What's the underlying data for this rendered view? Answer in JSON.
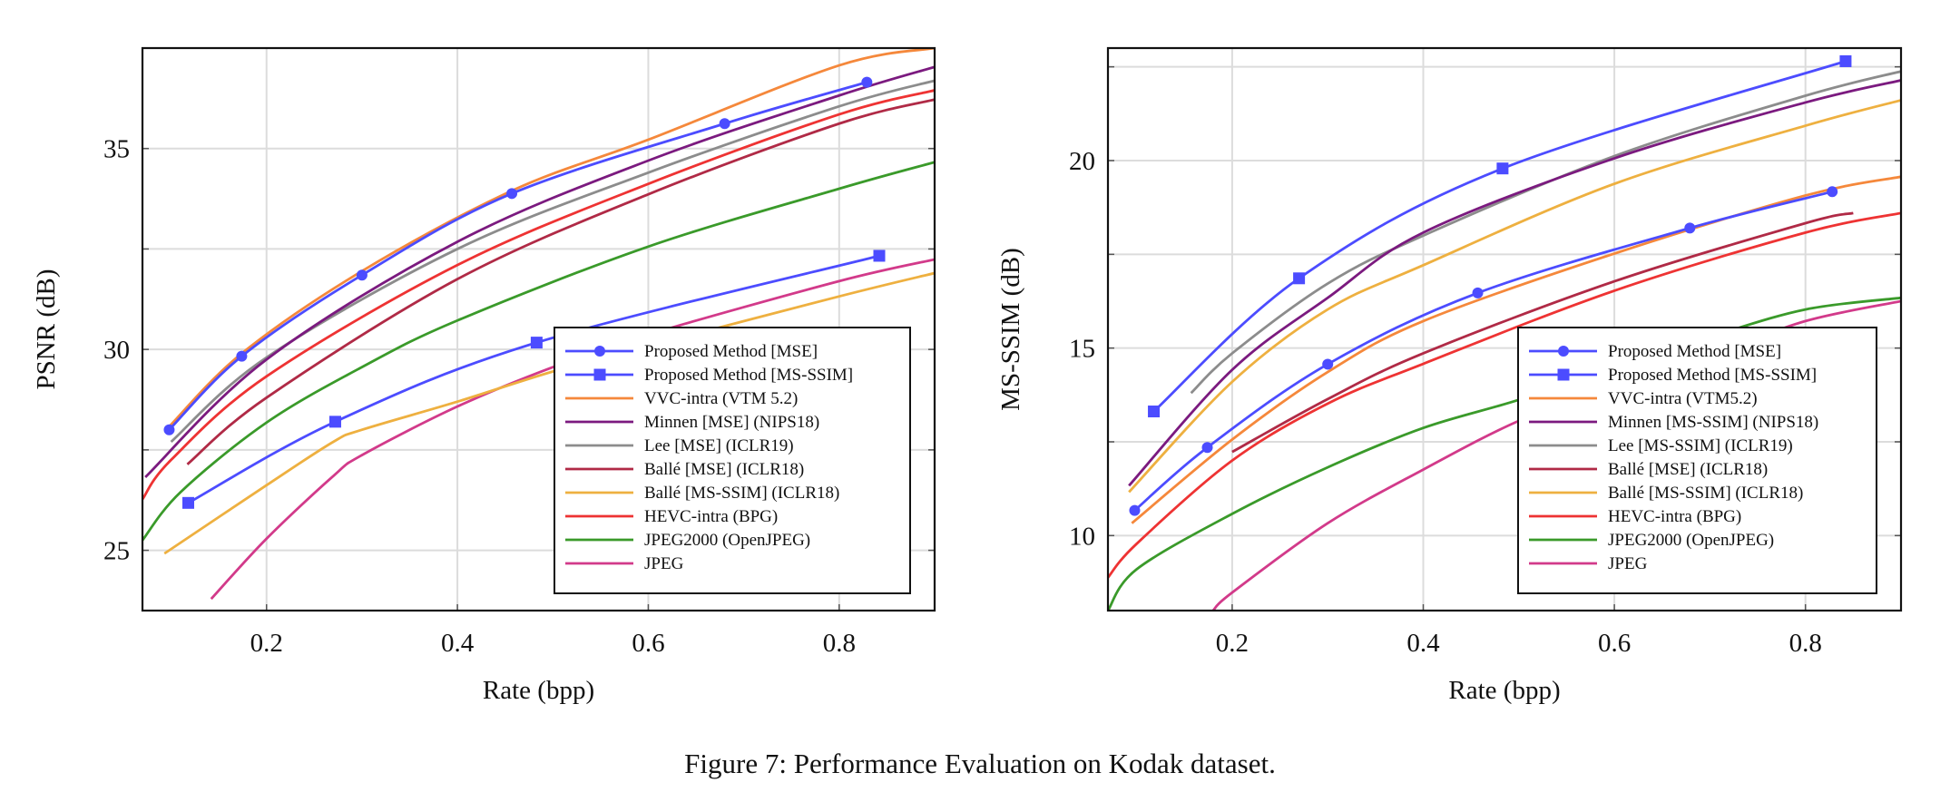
{
  "caption": "Figure 7: Performance Evaluation on Kodak dataset.",
  "chart_data": [
    {
      "type": "line",
      "xlabel": "Rate (bpp)",
      "ylabel": "PSNR (dB)",
      "xlim": [
        0.07,
        0.9
      ],
      "ylim": [
        23.5,
        37.5
      ],
      "xticks": [
        "0.2",
        "0.4",
        "0.6",
        "0.8"
      ],
      "yticks": [
        "25",
        "30",
        "35"
      ],
      "grid": true,
      "legend_position": "bottom-right",
      "series": [
        {
          "name": "Proposed Method [MSE]",
          "color": "#4c4cff",
          "marker": "circle",
          "x": [
            0.098,
            0.174,
            0.3,
            0.457,
            0.68,
            0.829
          ],
          "y": [
            28.0,
            29.83,
            31.85,
            33.88,
            35.62,
            36.65
          ]
        },
        {
          "name": "Proposed Method [MS-SSIM]",
          "color": "#4c4cff",
          "marker": "square",
          "x": [
            0.118,
            0.272,
            0.483,
            0.842
          ],
          "y": [
            26.18,
            28.2,
            30.17,
            32.33
          ]
        },
        {
          "name": "VVC-intra (VTM 5.2)",
          "color": "#f5883b",
          "x": [
            0.098,
            0.174,
            0.3,
            0.457,
            0.6,
            0.8,
            0.9
          ],
          "y": [
            28.08,
            29.9,
            31.95,
            33.95,
            35.22,
            37.07,
            37.5
          ]
        },
        {
          "name": "Minnen [MSE] (NIPS18)",
          "color": "#7b1a7f",
          "x": [
            0.073,
            0.2,
            0.4,
            0.6,
            0.8,
            0.9
          ],
          "y": [
            26.82,
            29.75,
            32.68,
            34.7,
            36.32,
            37.03
          ]
        },
        {
          "name": "Lee [MSE] (ICLR19)",
          "color": "#8c8c8c",
          "x": [
            0.1,
            0.2,
            0.4,
            0.6,
            0.8,
            0.9
          ],
          "y": [
            27.7,
            29.8,
            32.5,
            34.4,
            36.05,
            36.69
          ]
        },
        {
          "name": "Ballé [MSE] (ICLR18)",
          "color": "#b02a46",
          "x": [
            0.117,
            0.2,
            0.4,
            0.6,
            0.8,
            0.9
          ],
          "y": [
            27.14,
            28.8,
            31.75,
            33.86,
            35.62,
            36.22
          ]
        },
        {
          "name": "Ballé [MS-SSIM] (ICLR18)",
          "color": "#eeb040",
          "x": [
            0.093,
            0.2,
            0.27,
            0.3,
            0.4,
            0.5,
            0.6,
            0.8,
            0.9
          ],
          "y": [
            24.92,
            26.62,
            27.7,
            28.0,
            28.7,
            29.45,
            30.08,
            31.32,
            31.9
          ]
        },
        {
          "name": "HEVC-intra (BPG)",
          "color": "#ee3333",
          "x": [
            0.07,
            0.1,
            0.2,
            0.4,
            0.6,
            0.8,
            0.9
          ],
          "y": [
            26.27,
            27.25,
            29.33,
            32.1,
            34.12,
            35.85,
            36.45
          ]
        },
        {
          "name": "JPEG2000 (OpenJPEG)",
          "color": "#3a9a2a",
          "x": [
            0.07,
            0.11,
            0.2,
            0.3,
            0.4,
            0.6,
            0.8,
            0.9
          ],
          "y": [
            25.25,
            26.45,
            28.18,
            29.56,
            30.72,
            32.56,
            34.0,
            34.66
          ]
        },
        {
          "name": "JPEG",
          "color": "#d23a8a",
          "x": [
            0.142,
            0.2,
            0.27,
            0.3,
            0.4,
            0.5,
            0.6,
            0.8,
            0.9
          ],
          "y": [
            23.79,
            25.29,
            26.85,
            27.37,
            28.58,
            29.56,
            30.37,
            31.7,
            32.24
          ]
        }
      ]
    },
    {
      "type": "line",
      "xlabel": "Rate (bpp)",
      "ylabel": "MS-SSIM (dB)",
      "xlim": [
        0.07,
        0.9
      ],
      "ylim": [
        8,
        23
      ],
      "xticks": [
        "0.2",
        "0.4",
        "0.6",
        "0.8"
      ],
      "yticks": [
        "10",
        "15",
        "20"
      ],
      "grid": true,
      "legend_position": "bottom-right",
      "series": [
        {
          "name": "Proposed Method [MSE]",
          "color": "#4c4cff",
          "marker": "circle",
          "x": [
            0.098,
            0.174,
            0.3,
            0.457,
            0.679,
            0.828
          ],
          "y": [
            10.67,
            12.35,
            14.57,
            16.47,
            18.2,
            19.17
          ]
        },
        {
          "name": "Proposed Method [MS-SSIM]",
          "color": "#4c4cff",
          "marker": "square",
          "x": [
            0.118,
            0.27,
            0.483,
            0.842
          ],
          "y": [
            13.31,
            16.86,
            19.79,
            22.65
          ]
        },
        {
          "name": "VVC-intra (VTM5.2)",
          "color": "#f5883b",
          "x": [
            0.095,
            0.2,
            0.3,
            0.4,
            0.6,
            0.8,
            0.9
          ],
          "y": [
            10.33,
            12.56,
            14.36,
            15.72,
            17.52,
            19.07,
            19.57
          ]
        },
        {
          "name": "Minnen [MS-SSIM] (NIPS18)",
          "color": "#7b1a7f",
          "x": [
            0.092,
            0.2,
            0.3,
            0.4,
            0.6,
            0.8,
            0.9
          ],
          "y": [
            11.33,
            14.42,
            16.34,
            18.08,
            20.06,
            21.55,
            22.14
          ]
        },
        {
          "name": "Lee [MS-SSIM] (ICLR19)",
          "color": "#8c8c8c",
          "x": [
            0.157,
            0.2,
            0.3,
            0.4,
            0.6,
            0.8,
            0.9
          ],
          "y": [
            13.8,
            14.86,
            16.72,
            18.0,
            20.12,
            21.73,
            22.38
          ]
        },
        {
          "name": "Ballé [MSE] (ICLR18)",
          "color": "#b02a46",
          "x": [
            0.2,
            0.3,
            0.4,
            0.6,
            0.8,
            0.85
          ],
          "y": [
            12.23,
            13.64,
            14.86,
            16.78,
            18.33,
            18.6
          ]
        },
        {
          "name": "Ballé [MS-SSIM] (ICLR18)",
          "color": "#eeb040",
          "x": [
            0.092,
            0.2,
            0.3,
            0.4,
            0.6,
            0.8,
            0.9
          ],
          "y": [
            11.16,
            14.1,
            16.03,
            17.21,
            19.38,
            20.93,
            21.61
          ]
        },
        {
          "name": "HEVC-intra (BPG)",
          "color": "#ee3333",
          "x": [
            0.07,
            0.1,
            0.2,
            0.3,
            0.4,
            0.6,
            0.8,
            0.9
          ],
          "y": [
            8.88,
            9.78,
            12.0,
            13.52,
            14.58,
            16.53,
            18.08,
            18.6
          ]
        },
        {
          "name": "JPEG2000 (OpenJPEG)",
          "color": "#3a9a2a",
          "x": [
            0.07,
            0.1,
            0.2,
            0.3,
            0.4,
            0.5,
            0.6,
            0.7,
            0.8,
            0.9
          ],
          "y": [
            8.0,
            9.1,
            10.58,
            11.82,
            12.87,
            13.62,
            14.5,
            15.3,
            16.03,
            16.34
          ]
        },
        {
          "name": "JPEG",
          "color": "#d23a8a",
          "x": [
            0.18,
            0.2,
            0.3,
            0.4,
            0.5,
            0.6,
            0.7,
            0.8,
            0.9
          ],
          "y": [
            8.0,
            8.48,
            10.33,
            11.76,
            13.06,
            14.0,
            14.8,
            15.72,
            16.25
          ]
        }
      ]
    }
  ]
}
